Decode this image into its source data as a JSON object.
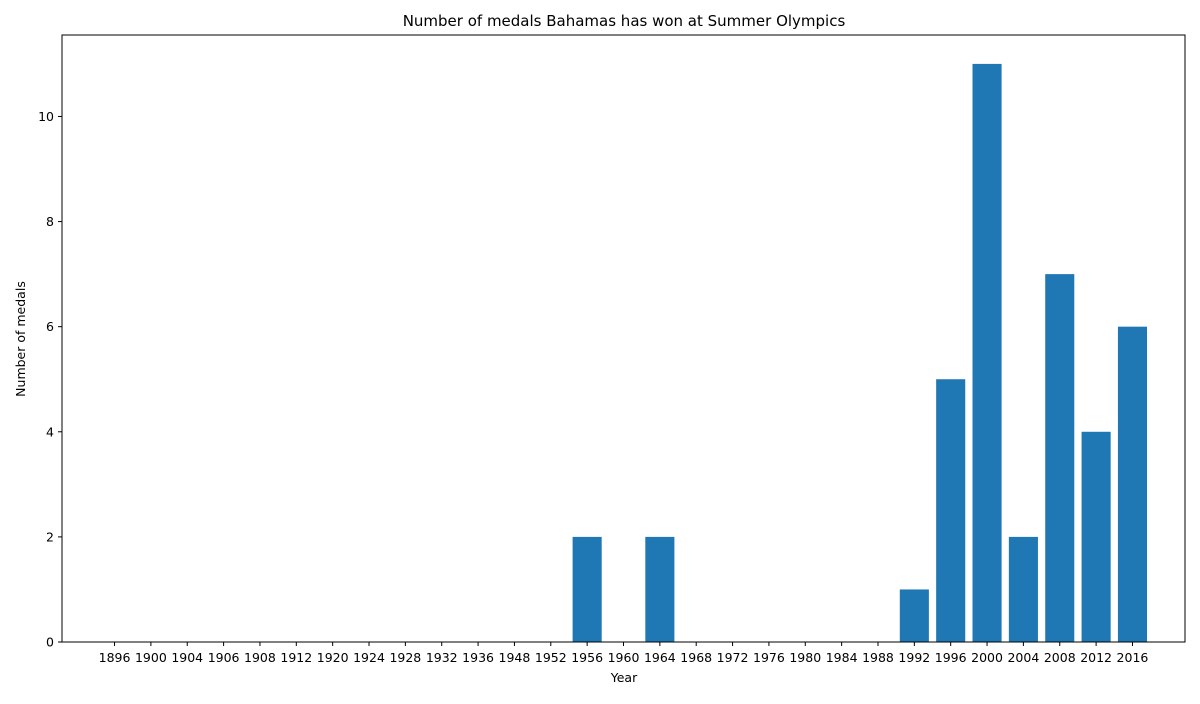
{
  "chart_data": {
    "type": "bar",
    "title": "Number of medals Bahamas has won at Summer Olympics",
    "xlabel": "Year",
    "ylabel": "Number of medals",
    "categories": [
      "1896",
      "1900",
      "1904",
      "1906",
      "1908",
      "1912",
      "1920",
      "1924",
      "1928",
      "1932",
      "1936",
      "1948",
      "1952",
      "1956",
      "1960",
      "1964",
      "1968",
      "1972",
      "1976",
      "1980",
      "1984",
      "1988",
      "1992",
      "1996",
      "2000",
      "2004",
      "2008",
      "2012",
      "2016"
    ],
    "values": [
      0,
      0,
      0,
      0,
      0,
      0,
      0,
      0,
      0,
      0,
      0,
      0,
      0,
      2,
      0,
      2,
      0,
      0,
      0,
      0,
      0,
      0,
      1,
      5,
      11,
      2,
      7,
      4,
      6
    ],
    "ylim": [
      0,
      11.55
    ],
    "yticks": [
      0,
      2,
      4,
      6,
      8,
      10
    ],
    "grid": false,
    "legend": "none",
    "colors": {
      "bar": "#1f77b4",
      "axis": "#000000",
      "background": "#ffffff"
    }
  }
}
